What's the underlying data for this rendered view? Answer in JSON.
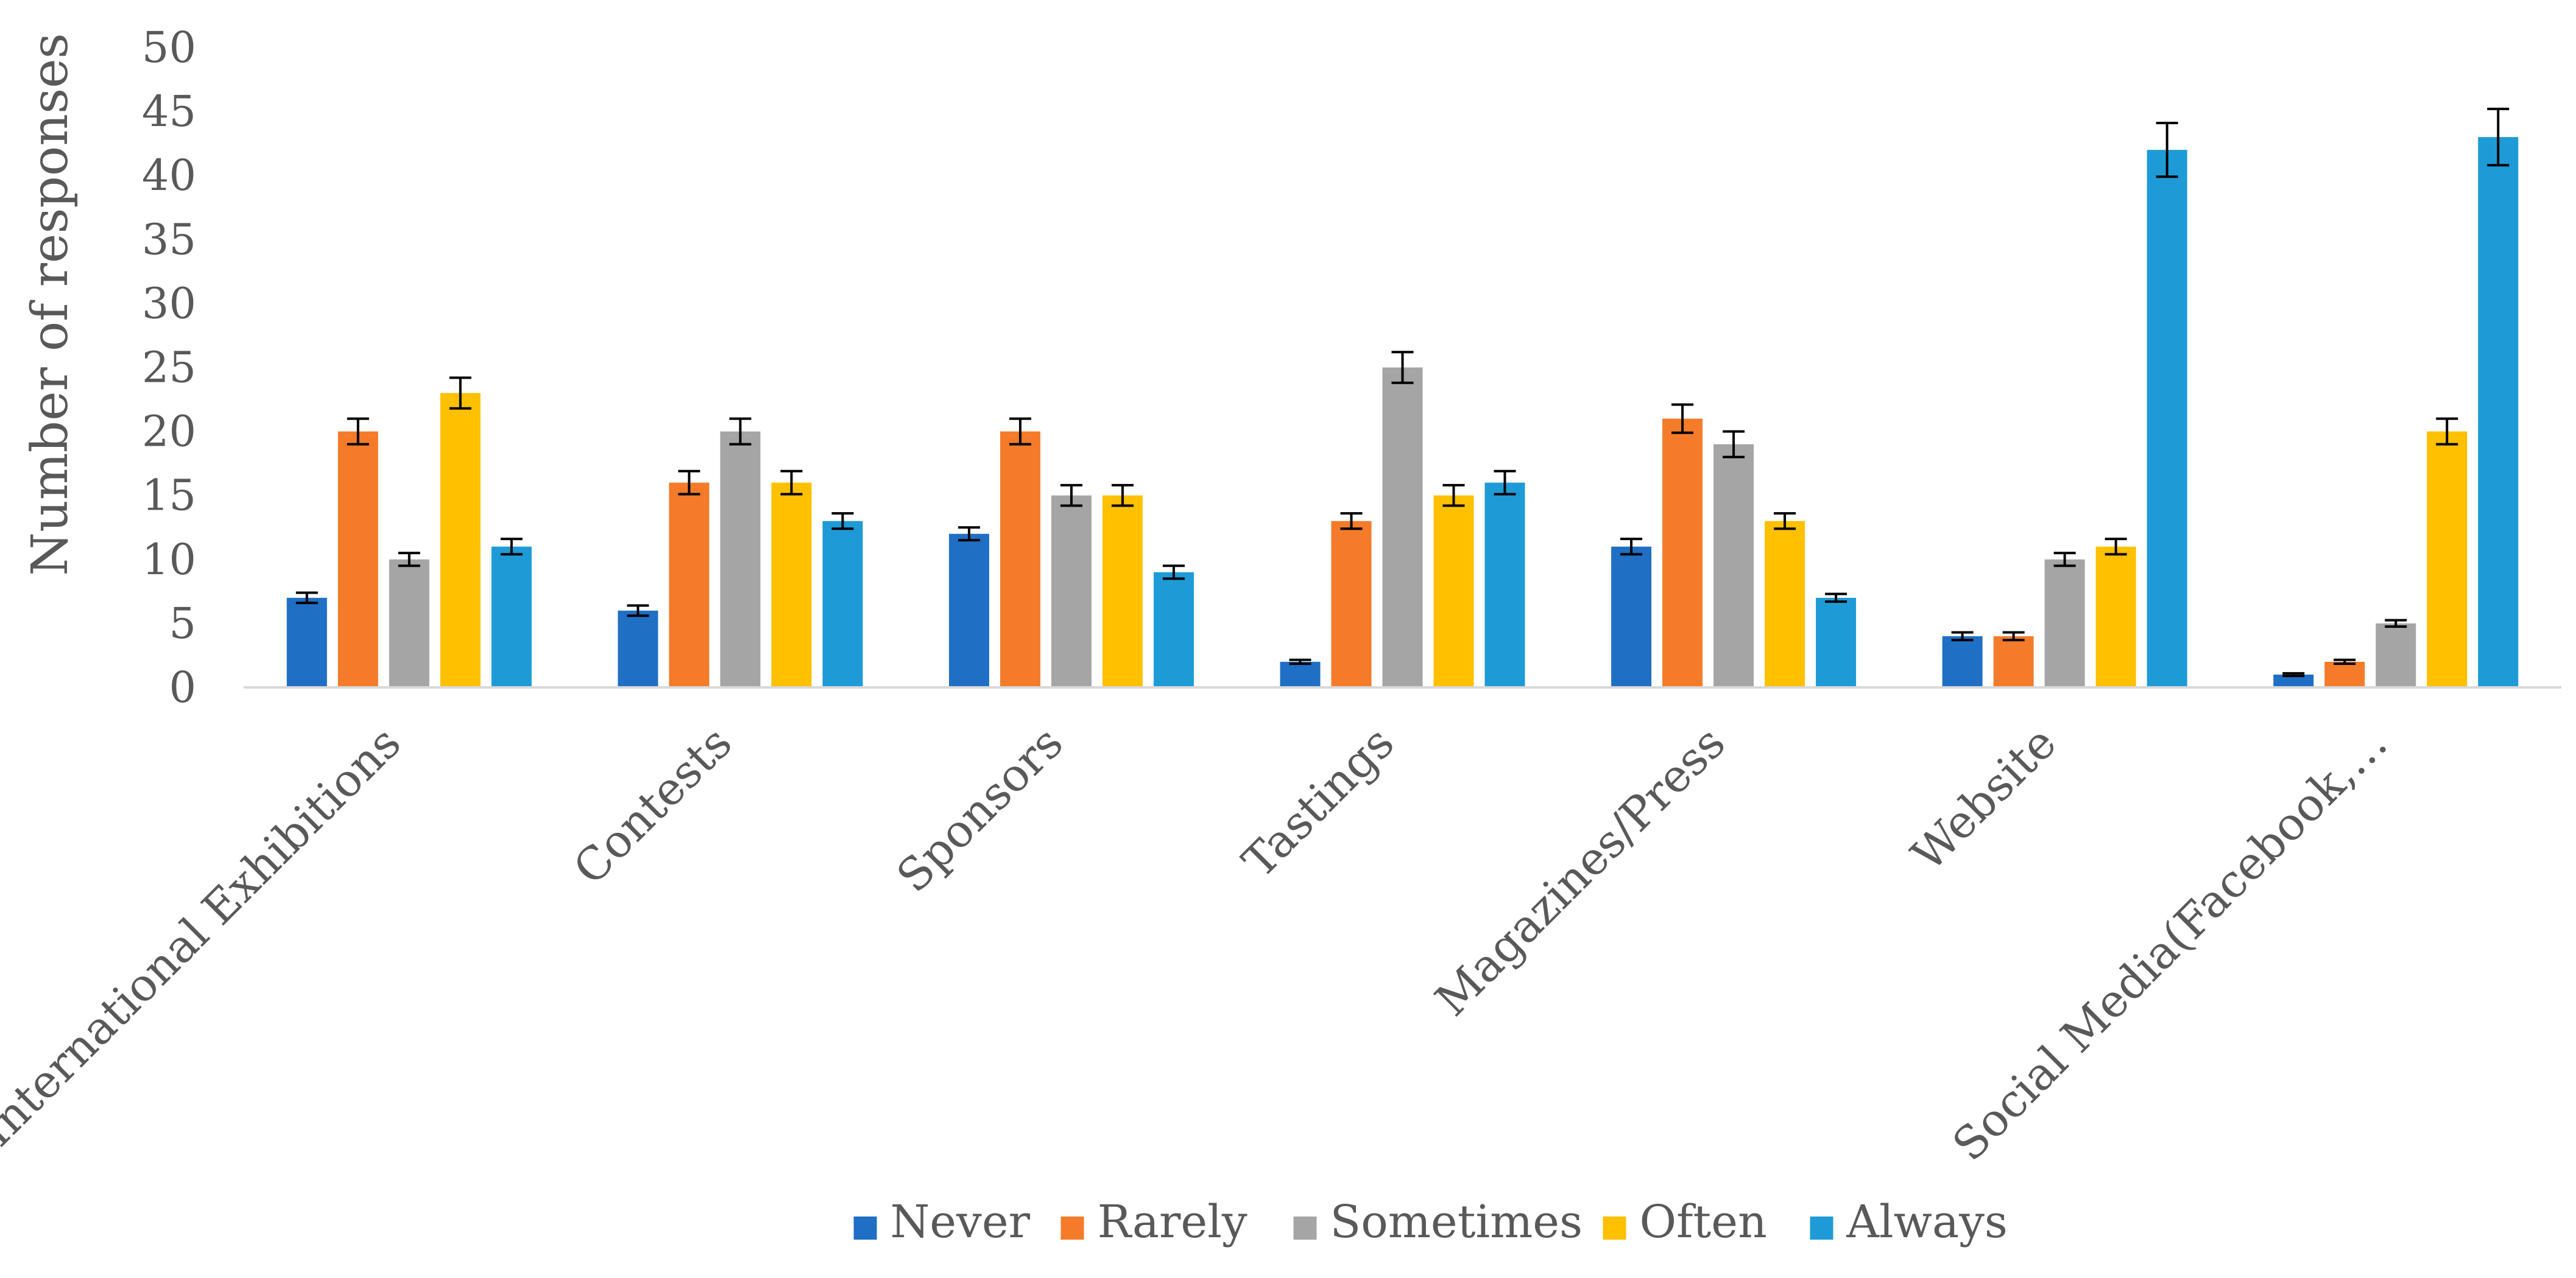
{
  "chart_data": {
    "type": "bar",
    "title": "",
    "xlabel": "",
    "ylabel": "Number of responses",
    "ylim": [
      0,
      50
    ],
    "yticks": [
      0,
      5,
      10,
      15,
      20,
      25,
      30,
      35,
      40,
      45,
      50
    ],
    "grid": false,
    "legend_position": "bottom",
    "error_bars": true,
    "categories": [
      "International Exhibitions",
      "Contests",
      "Sponsors",
      "Tastings",
      "Magazines/Press",
      "Website",
      "Social Media(Facebook,…"
    ],
    "series": [
      {
        "name": "Never",
        "color": "#1F6FC5",
        "values": [
          7,
          6,
          12,
          2,
          11,
          4,
          1
        ],
        "errors": [
          0.4,
          0.4,
          0.5,
          0.15,
          0.6,
          0.3,
          0.1
        ]
      },
      {
        "name": "Rarely",
        "color": "#F47B2A",
        "values": [
          20,
          16,
          20,
          13,
          21,
          4,
          2
        ],
        "errors": [
          1.0,
          0.9,
          1.0,
          0.6,
          1.1,
          0.3,
          0.15
        ]
      },
      {
        "name": "Sometimes",
        "color": "#A5A5A5",
        "values": [
          10,
          20,
          15,
          25,
          19,
          10,
          5
        ],
        "errors": [
          0.5,
          1.0,
          0.8,
          1.2,
          1.0,
          0.5,
          0.25
        ]
      },
      {
        "name": "Often",
        "color": "#FFC000",
        "values": [
          23,
          16,
          15,
          15,
          13,
          11,
          20
        ],
        "errors": [
          1.2,
          0.9,
          0.8,
          0.8,
          0.6,
          0.6,
          1.0
        ]
      },
      {
        "name": "Always",
        "color": "#1E9BD7",
        "values": [
          11,
          13,
          9,
          16,
          7,
          42,
          43
        ],
        "errors": [
          0.6,
          0.6,
          0.5,
          0.9,
          0.3,
          2.1,
          2.2
        ]
      }
    ]
  }
}
